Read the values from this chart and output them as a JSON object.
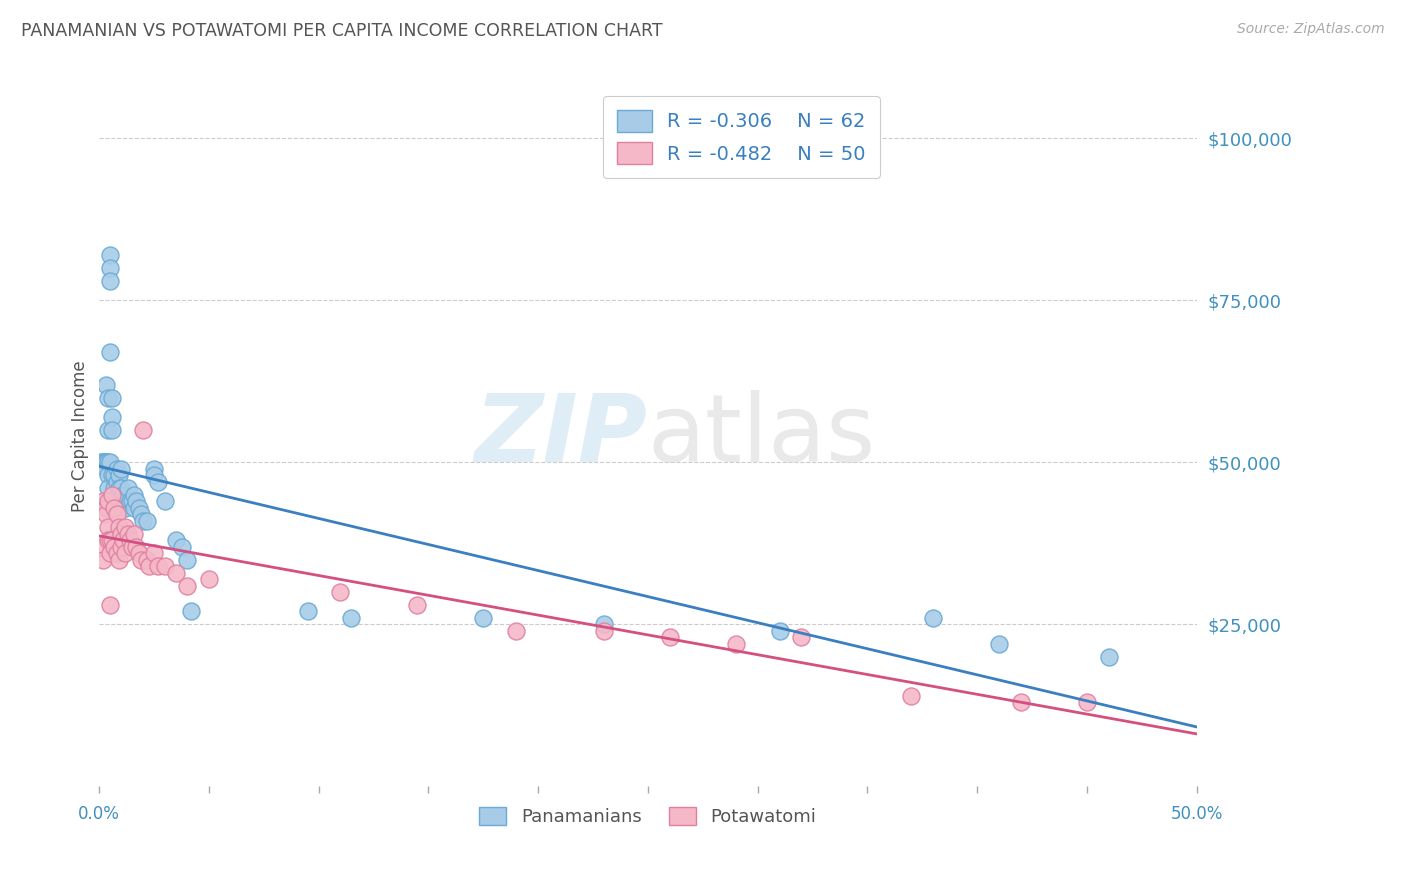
{
  "title": "PANAMANIAN VS POTAWATOMI PER CAPITA INCOME CORRELATION CHART",
  "source": "Source: ZipAtlas.com",
  "ylabel": "Per Capita Income",
  "legend_blue_r": "R = -0.306",
  "legend_blue_n": "N = 62",
  "legend_pink_r": "R = -0.482",
  "legend_pink_n": "N = 50",
  "ytick_labels": [
    "$25,000",
    "$50,000",
    "$75,000",
    "$100,000"
  ],
  "ytick_values": [
    25000,
    50000,
    75000,
    100000
  ],
  "color_blue": "#a8cce8",
  "color_pink": "#f4b8c8",
  "color_blue_edge": "#6aaad4",
  "color_pink_edge": "#e080a0",
  "color_blue_line": "#3a7fc1",
  "color_pink_line": "#d45080",
  "color_grid": "#cccccc",
  "color_title": "#555555",
  "color_source": "#aaaaaa",
  "color_ytick": "#4090c0",
  "watermark_zip": "ZIP",
  "watermark_atlas": "atlas",
  "xmin": 0.0,
  "xmax": 0.5,
  "ymin": 0,
  "ymax": 108000,
  "blue_points_x": [
    0.001,
    0.002,
    0.002,
    0.003,
    0.003,
    0.003,
    0.003,
    0.004,
    0.004,
    0.004,
    0.004,
    0.004,
    0.004,
    0.005,
    0.005,
    0.005,
    0.005,
    0.005,
    0.005,
    0.006,
    0.006,
    0.006,
    0.006,
    0.006,
    0.007,
    0.007,
    0.007,
    0.008,
    0.008,
    0.009,
    0.009,
    0.01,
    0.01,
    0.011,
    0.012,
    0.012,
    0.013,
    0.014,
    0.015,
    0.016,
    0.016,
    0.017,
    0.018,
    0.019,
    0.02,
    0.022,
    0.025,
    0.025,
    0.027,
    0.03,
    0.035,
    0.038,
    0.04,
    0.042,
    0.095,
    0.115,
    0.175,
    0.23,
    0.31,
    0.38,
    0.41,
    0.46
  ],
  "blue_points_y": [
    50000,
    50000,
    50000,
    50000,
    50000,
    49000,
    62000,
    60000,
    55000,
    50000,
    48000,
    46000,
    44000,
    82000,
    80000,
    78000,
    67000,
    50000,
    44000,
    60000,
    57000,
    55000,
    48000,
    43000,
    48000,
    46000,
    43000,
    49000,
    47000,
    48000,
    46000,
    49000,
    46000,
    45000,
    44000,
    43000,
    46000,
    44000,
    44000,
    45000,
    43000,
    44000,
    43000,
    42000,
    41000,
    41000,
    49000,
    48000,
    47000,
    44000,
    38000,
    37000,
    35000,
    27000,
    27000,
    26000,
    26000,
    25000,
    24000,
    26000,
    22000,
    20000
  ],
  "pink_points_x": [
    0.001,
    0.002,
    0.002,
    0.003,
    0.003,
    0.004,
    0.004,
    0.004,
    0.005,
    0.005,
    0.005,
    0.006,
    0.006,
    0.007,
    0.007,
    0.008,
    0.008,
    0.009,
    0.009,
    0.01,
    0.01,
    0.011,
    0.012,
    0.012,
    0.013,
    0.014,
    0.015,
    0.016,
    0.017,
    0.018,
    0.019,
    0.02,
    0.022,
    0.023,
    0.025,
    0.027,
    0.03,
    0.035,
    0.04,
    0.05,
    0.11,
    0.145,
    0.19,
    0.23,
    0.26,
    0.29,
    0.32,
    0.37,
    0.42,
    0.45
  ],
  "pink_points_y": [
    37000,
    44000,
    35000,
    43000,
    42000,
    44000,
    40000,
    38000,
    38000,
    36000,
    28000,
    45000,
    38000,
    43000,
    37000,
    42000,
    36000,
    40000,
    35000,
    39000,
    37000,
    38000,
    40000,
    36000,
    39000,
    38000,
    37000,
    39000,
    37000,
    36000,
    35000,
    55000,
    35000,
    34000,
    36000,
    34000,
    34000,
    33000,
    31000,
    32000,
    30000,
    28000,
    24000,
    24000,
    23000,
    22000,
    23000,
    14000,
    13000,
    13000
  ]
}
